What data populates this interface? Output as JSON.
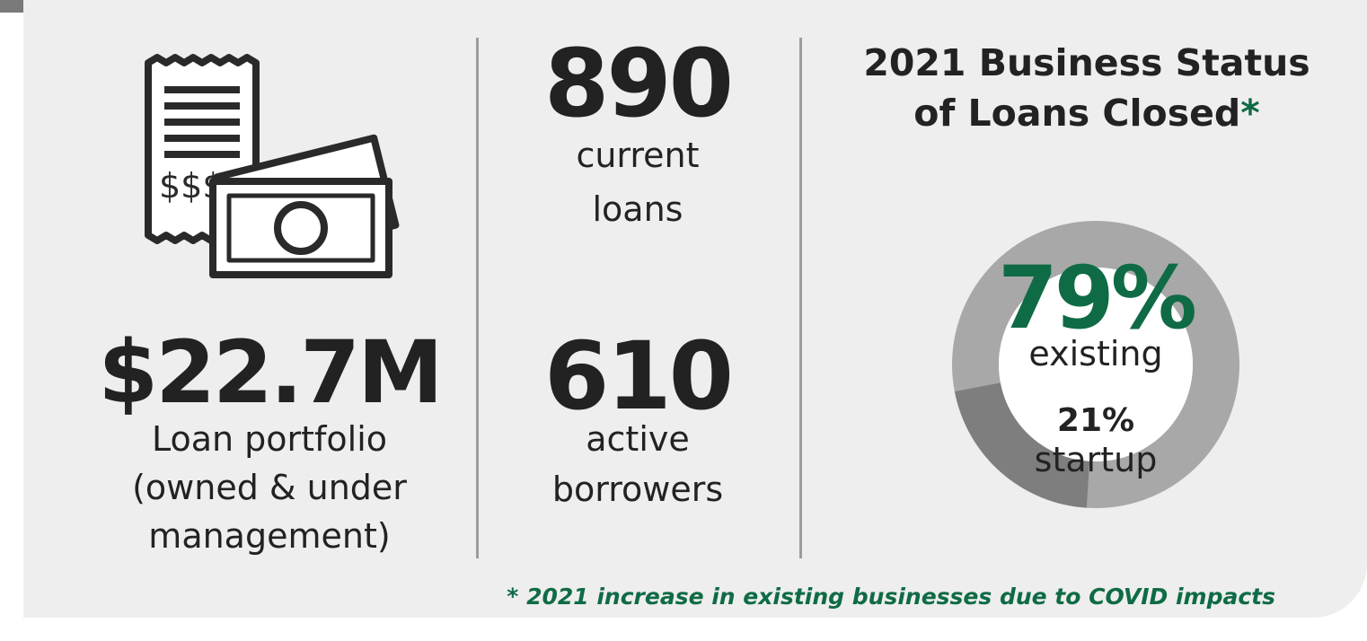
{
  "stats": {
    "portfolio_value": "$22.7M",
    "portfolio_label_1": "Loan portfolio",
    "portfolio_label_2": "(owned & under",
    "portfolio_label_3": "management)",
    "current_loans_value": "890",
    "current_loans_label_1": "current",
    "current_loans_label_2": "loans",
    "active_borrowers_value": "610",
    "active_borrowers_label_1": "active",
    "active_borrowers_label_2": "borrowers"
  },
  "chart_data": {
    "type": "pie",
    "title_line_1": "2021 Business Status",
    "title_line_2": "of Loans Closed",
    "title_marker": "*",
    "categories": [
      "existing",
      "startup"
    ],
    "values": [
      79,
      21
    ],
    "value_labels": [
      "79%",
      "21%"
    ],
    "colors": [
      "#a8a8a8",
      "#7e7e7e"
    ],
    "hole": true
  },
  "footnote": "* 2021 increase in existing businesses due to COVID impacts",
  "icons": {
    "receipt": "receipt-icon",
    "cash": "banknotes-icon"
  },
  "colors": {
    "accent_green": "#0f6b45",
    "panel_bg": "#edeeed",
    "text_dark": "#222222"
  }
}
